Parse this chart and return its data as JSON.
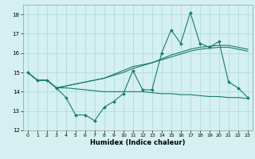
{
  "xlabel": "Humidex (Indice chaleur)",
  "xlim_min": -0.5,
  "xlim_max": 23.5,
  "ylim_min": 12,
  "ylim_max": 18.5,
  "yticks": [
    12,
    13,
    14,
    15,
    16,
    17,
    18
  ],
  "xticks": [
    0,
    1,
    2,
    3,
    4,
    5,
    6,
    7,
    8,
    9,
    10,
    11,
    12,
    13,
    14,
    15,
    16,
    17,
    18,
    19,
    20,
    21,
    22,
    23
  ],
  "background_color": "#d4f0f0",
  "grid_color": "#aad8d8",
  "line_color": "#1a7a6e",
  "line1_y": [
    15.0,
    14.6,
    14.6,
    14.2,
    13.7,
    12.8,
    12.8,
    12.5,
    13.2,
    13.5,
    13.9,
    15.1,
    14.1,
    14.1,
    16.0,
    17.2,
    16.5,
    18.1,
    16.5,
    16.3,
    16.6,
    14.5,
    14.2,
    13.7
  ],
  "line2_y": [
    15.0,
    14.6,
    14.6,
    14.2,
    14.2,
    14.15,
    14.1,
    14.05,
    14.0,
    14.0,
    14.0,
    14.0,
    14.0,
    13.95,
    13.9,
    13.9,
    13.85,
    13.85,
    13.8,
    13.75,
    13.75,
    13.7,
    13.7,
    13.65
  ],
  "line3_y": [
    15.0,
    14.6,
    14.6,
    14.2,
    14.3,
    14.4,
    14.5,
    14.6,
    14.7,
    14.9,
    15.1,
    15.3,
    15.4,
    15.5,
    15.7,
    15.9,
    16.05,
    16.2,
    16.3,
    16.35,
    16.4,
    16.4,
    16.3,
    16.2
  ],
  "line4_y": [
    15.0,
    14.6,
    14.6,
    14.2,
    14.3,
    14.4,
    14.5,
    14.6,
    14.7,
    14.85,
    15.0,
    15.2,
    15.35,
    15.5,
    15.65,
    15.8,
    15.95,
    16.1,
    16.2,
    16.25,
    16.3,
    16.3,
    16.2,
    16.1
  ]
}
